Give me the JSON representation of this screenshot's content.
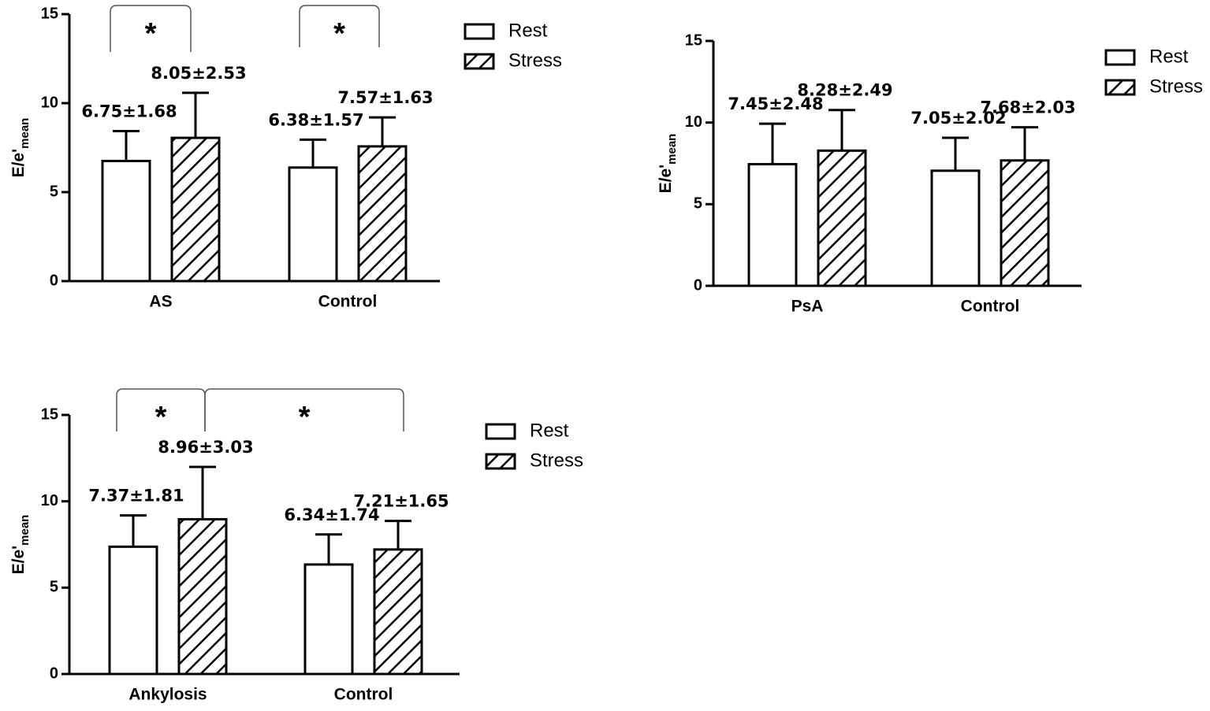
{
  "chart_data": [
    {
      "type": "bar",
      "ylabel": "E/e'",
      "ylabel_subscript": "mean",
      "categories": [
        "AS",
        "Control"
      ],
      "series": [
        {
          "name": "Rest",
          "fill": "white",
          "values": [
            6.75,
            6.38
          ],
          "errors": [
            1.68,
            1.57
          ],
          "value_labels": [
            "6.75±1.68",
            "6.38±1.57"
          ]
        },
        {
          "name": "Stress",
          "fill": "hatch",
          "values": [
            8.05,
            7.57
          ],
          "errors": [
            2.53,
            1.63
          ],
          "value_labels": [
            "8.05±2.53",
            "7.57±1.63"
          ]
        }
      ],
      "ylim": [
        0,
        15
      ],
      "yticks": [
        0,
        5,
        10,
        15
      ],
      "annotations": [
        "*",
        "*"
      ]
    },
    {
      "type": "bar",
      "ylabel": "E/e'",
      "ylabel_subscript": "mean",
      "categories": [
        "PsA",
        "Control"
      ],
      "series": [
        {
          "name": "Rest",
          "fill": "white",
          "values": [
            7.45,
            7.05
          ],
          "errors": [
            2.48,
            2.02
          ],
          "value_labels": [
            "7.45±2.48",
            "7.05±2.02"
          ]
        },
        {
          "name": "Stress",
          "fill": "hatch",
          "values": [
            8.28,
            7.68
          ],
          "errors": [
            2.49,
            2.03
          ],
          "value_labels": [
            "8.28±2.49",
            "7.68±2.03"
          ]
        }
      ],
      "ylim": [
        0,
        15
      ],
      "yticks": [
        0,
        5,
        10,
        15
      ]
    },
    {
      "type": "bar",
      "ylabel": "E/e'",
      "ylabel_subscript": "mean",
      "categories": [
        "Ankylosis",
        "Control"
      ],
      "series": [
        {
          "name": "Rest",
          "fill": "white",
          "values": [
            7.37,
            6.34
          ],
          "errors": [
            1.81,
            1.74
          ],
          "value_labels": [
            "7.37±1.81",
            "6.34±1.74"
          ]
        },
        {
          "name": "Stress",
          "fill": "hatch",
          "values": [
            8.96,
            7.21
          ],
          "errors": [
            3.03,
            1.65
          ],
          "value_labels": [
            "8.96±3.03",
            "7.21±1.65"
          ]
        }
      ],
      "ylim": [
        0,
        15
      ],
      "yticks": [
        0,
        5,
        10,
        15
      ],
      "annotations": [
        "*",
        "*"
      ]
    }
  ]
}
